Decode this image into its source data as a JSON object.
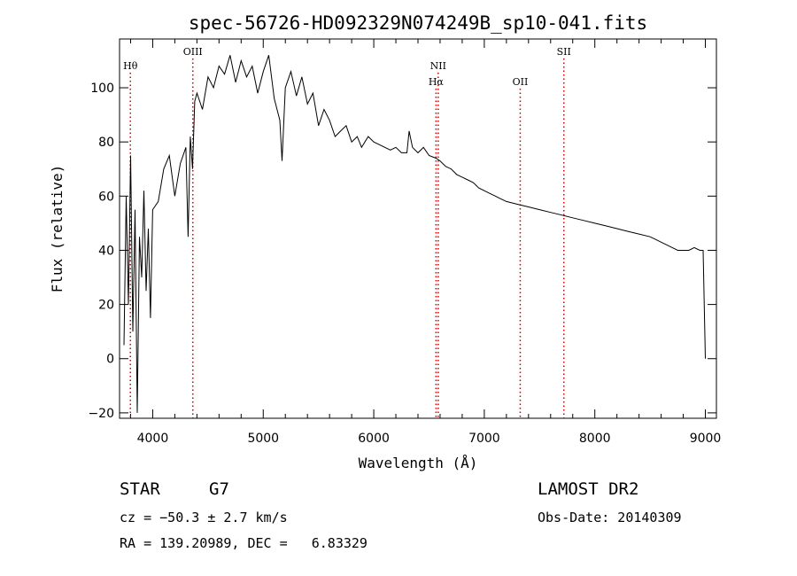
{
  "chart_data": {
    "type": "line",
    "title": "spec-56726-HD092329N074249B_sp10-041.fits",
    "xlabel": "Wavelength (Å)",
    "ylabel": "Flux (relative)",
    "xlim": [
      3700,
      9100
    ],
    "ylim": [
      -22,
      118
    ],
    "xticks": [
      4000,
      5000,
      6000,
      7000,
      8000,
      9000
    ],
    "yticks": [
      -20,
      0,
      20,
      40,
      60,
      80,
      100
    ],
    "grid": false,
    "series": [
      {
        "x": [
          3740,
          3760,
          3780,
          3800,
          3820,
          3840,
          3860,
          3880,
          3900,
          3920,
          3940,
          3960,
          3980,
          4000,
          4050,
          4100,
          4150,
          4200,
          4250,
          4300,
          4320,
          4340,
          4360,
          4380,
          4400,
          4450,
          4500,
          4550,
          4600,
          4650,
          4700,
          4750,
          4800,
          4850,
          4900,
          4950,
          5000,
          5050,
          5100,
          5150,
          5170,
          5200,
          5250,
          5300,
          5350,
          5400,
          5450,
          5500,
          5550,
          5600,
          5650,
          5700,
          5750,
          5800,
          5850,
          5890,
          5950,
          6000,
          6050,
          6100,
          6150,
          6200,
          6250,
          6300,
          6320,
          6350,
          6400,
          6450,
          6500,
          6563,
          6600,
          6650,
          6700,
          6750,
          6800,
          6850,
          6900,
          6950,
          7000,
          7050,
          7100,
          7150,
          7200,
          7300,
          7400,
          7500,
          7600,
          7700,
          7800,
          7900,
          8000,
          8100,
          8200,
          8300,
          8400,
          8500,
          8550,
          8600,
          8650,
          8700,
          8750,
          8800,
          8850,
          8900,
          8950,
          8980,
          9000
        ],
        "y": [
          5,
          60,
          20,
          75,
          10,
          55,
          -20,
          45,
          30,
          62,
          25,
          48,
          15,
          55,
          58,
          70,
          75,
          60,
          72,
          78,
          45,
          82,
          70,
          95,
          98,
          92,
          104,
          100,
          108,
          105,
          112,
          102,
          110,
          104,
          108,
          98,
          106,
          112,
          96,
          88,
          73,
          100,
          106,
          97,
          104,
          94,
          98,
          86,
          92,
          88,
          82,
          84,
          86,
          80,
          82,
          78,
          82,
          80,
          79,
          78,
          77,
          78,
          76,
          76,
          84,
          78,
          76,
          78,
          75,
          74,
          73,
          71,
          70,
          68,
          67,
          66,
          65,
          63,
          62,
          61,
          60,
          59,
          58,
          57,
          56,
          55,
          54,
          53,
          52,
          51,
          50,
          49,
          48,
          47,
          46,
          45,
          44,
          43,
          42,
          41,
          40,
          40,
          40,
          41,
          40,
          40,
          0
        ]
      }
    ],
    "spectral_lines": [
      {
        "label": "Hθ",
        "x": 3798
      },
      {
        "label": "OIII",
        "x": 4363
      },
      {
        "label": "NII",
        "x": 6583
      },
      {
        "label": "Hα",
        "x": 6563
      },
      {
        "label": "OII",
        "x": 7325
      },
      {
        "label": "SII",
        "x": 7720
      }
    ],
    "line_color": "#000000",
    "marker_color": "#cc0000"
  },
  "info": {
    "obj_class": "STAR",
    "subclass": "G7",
    "survey": "LAMOST DR2",
    "cz": "cz = −50.3 ± 2.7 km/s",
    "obs_date": "Obs-Date: 20140309",
    "coords": "RA = 139.20989, DEC =   6.83329"
  }
}
